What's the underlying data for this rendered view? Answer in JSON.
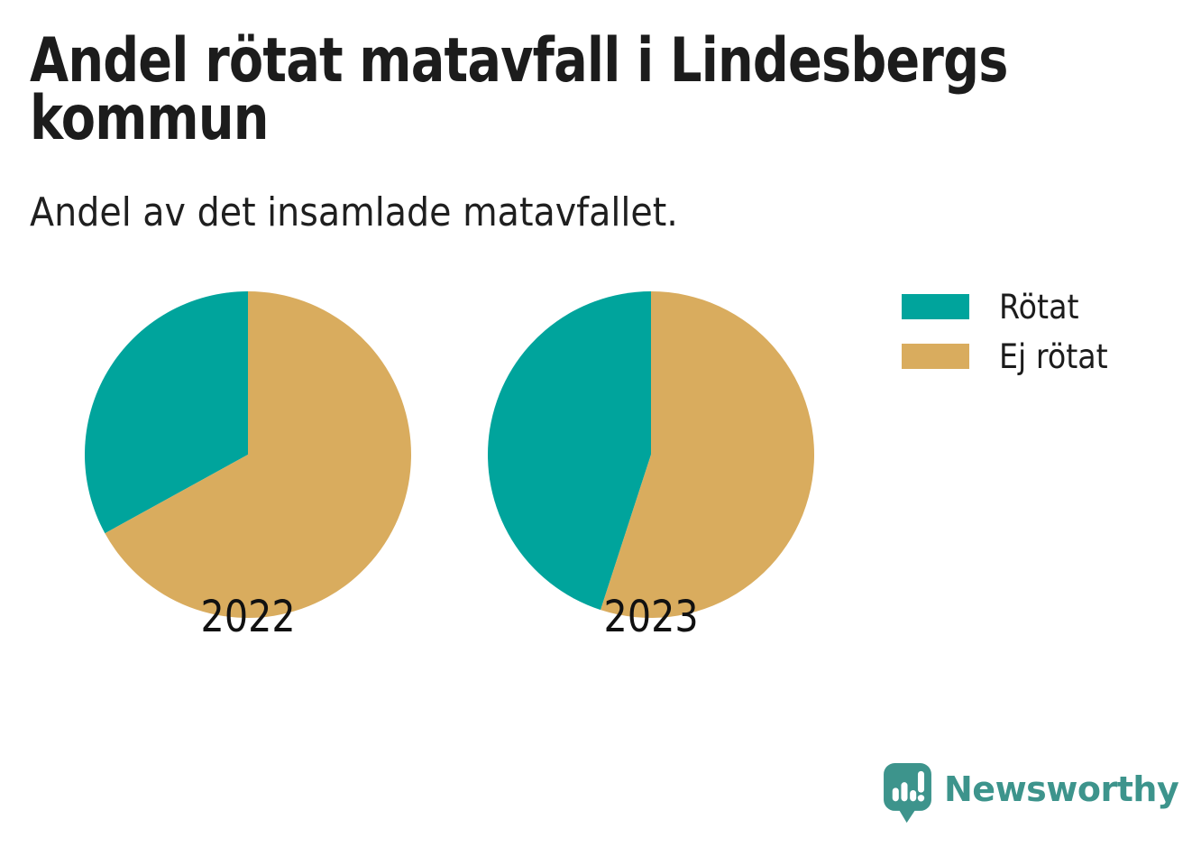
{
  "header": {
    "title_lines": [
      "Andel rötat matavfall i Lindesbergs",
      "kommun"
    ],
    "subtitle": "Andel av det insamlade matavfallet."
  },
  "chart_data": {
    "type": "pie",
    "title": "Andel rötat matavfall i Lindesbergs kommun",
    "subtitle": "Andel av det insamlade matavfallet.",
    "unit": "percent of collected food waste",
    "legend": {
      "position": "right",
      "entries": [
        "Rötat",
        "Ej rötat"
      ]
    },
    "colors": [
      "#00A49C",
      "#D9AC5E"
    ],
    "start_angle": 90,
    "direction": "counterclockwise",
    "pies": [
      {
        "label": "2022",
        "slices": [
          {
            "name": "Rötat",
            "value": 33
          },
          {
            "name": "Ej rötat",
            "value": 67
          }
        ]
      },
      {
        "label": "2023",
        "slices": [
          {
            "name": "Rötat",
            "value": 45
          },
          {
            "name": "Ej rötat",
            "value": 55
          }
        ]
      }
    ]
  },
  "branding": {
    "logo_text": "Newsworthy",
    "logo_color": "#3D948C",
    "logo_icon": "newsworthy-speech-bubble-chart-icon"
  }
}
